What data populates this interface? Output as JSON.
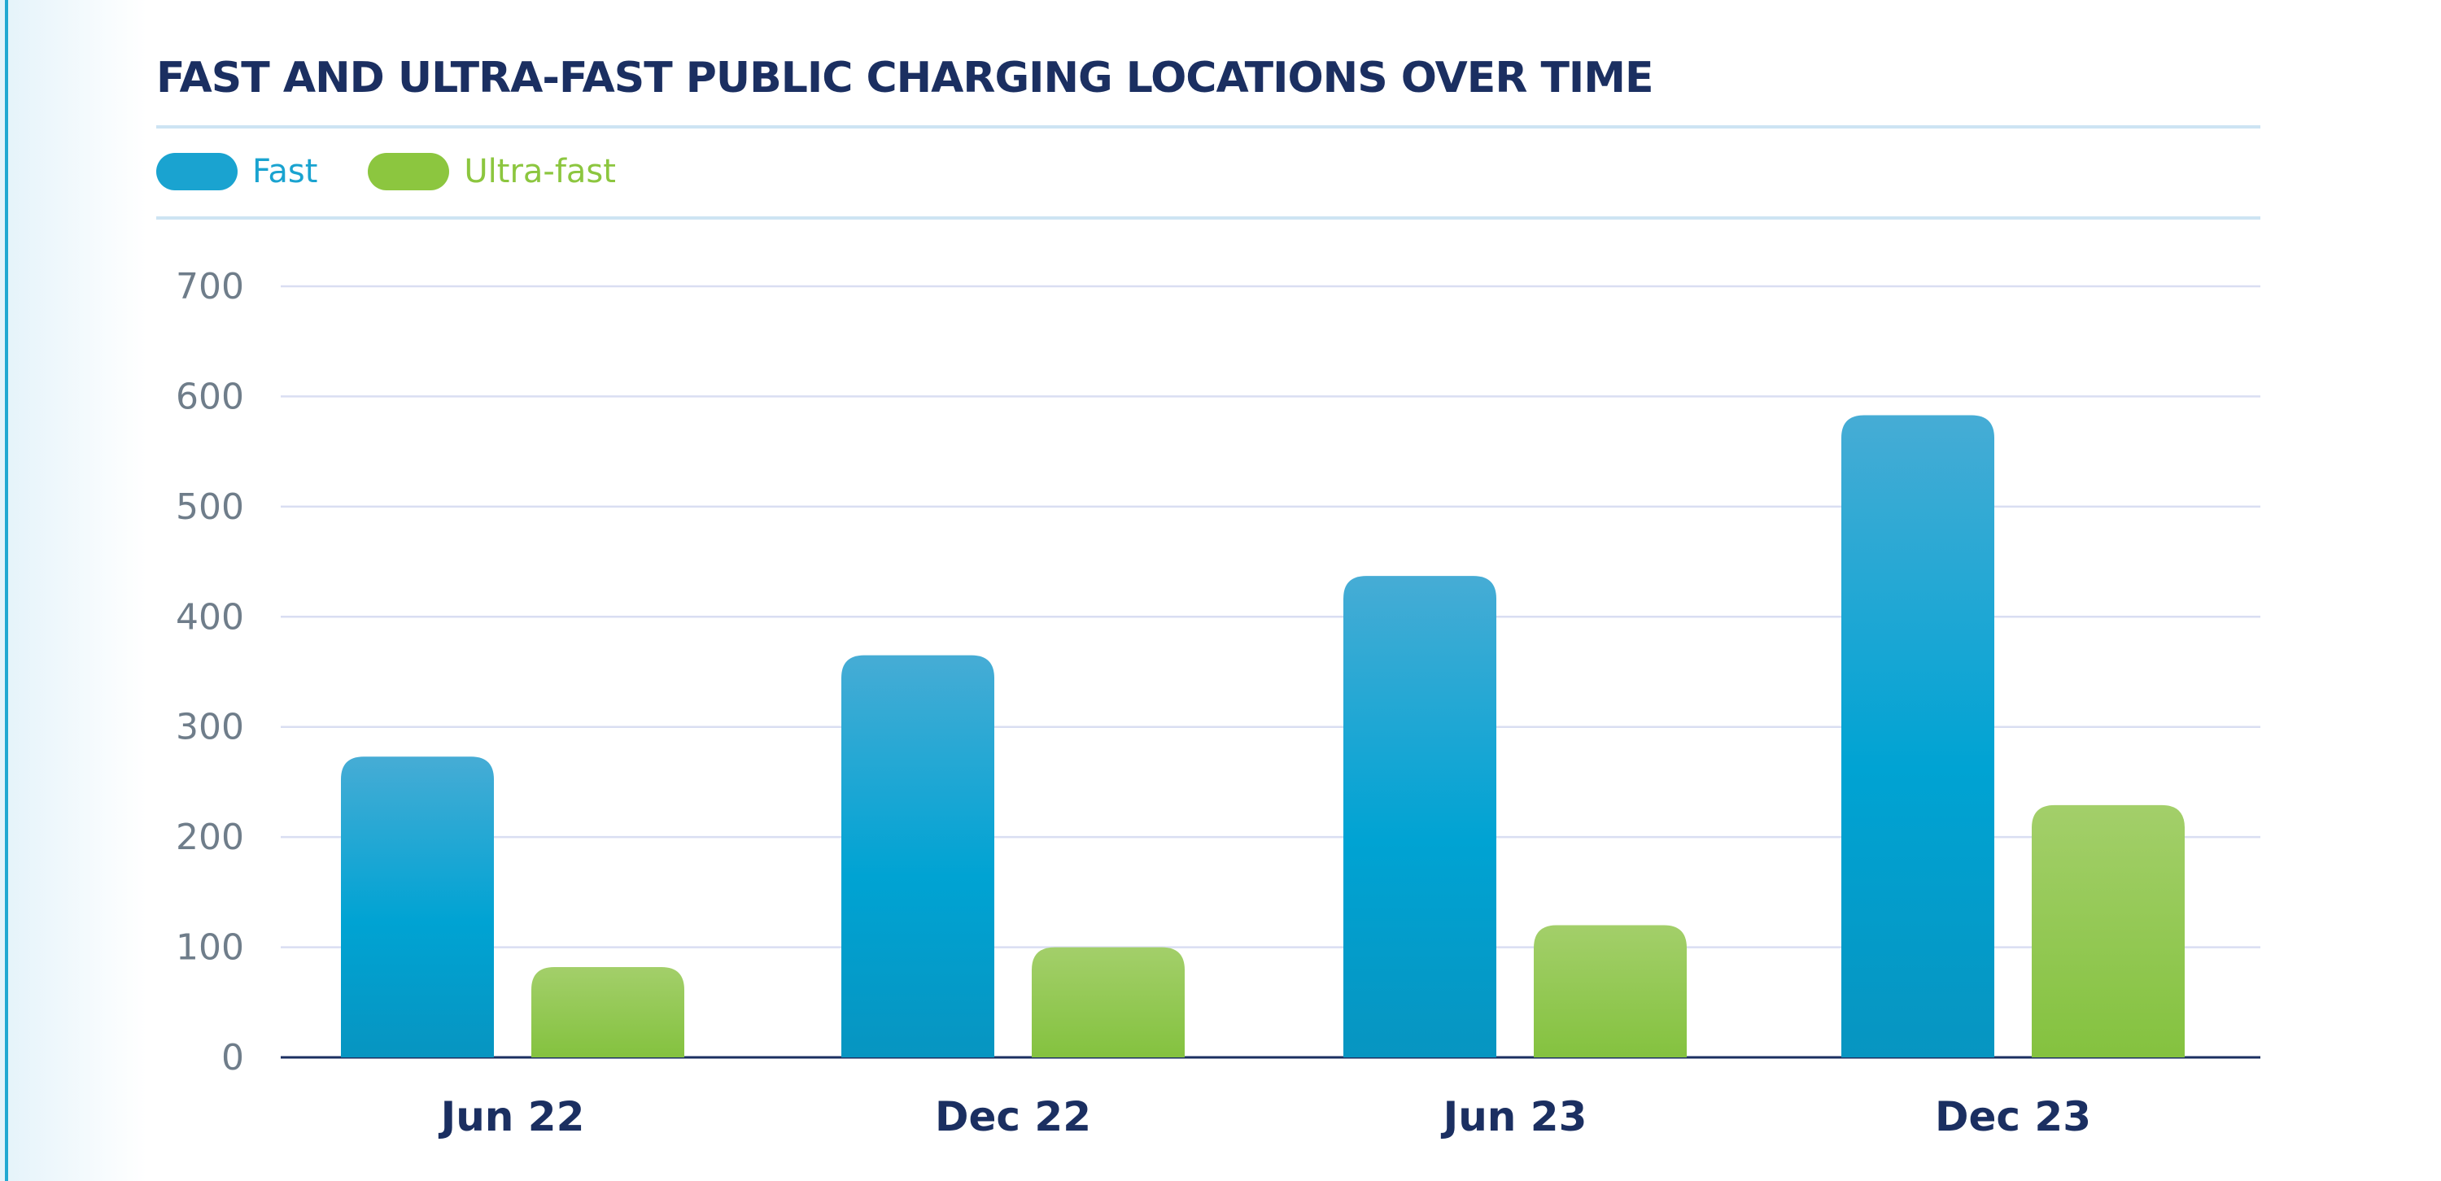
{
  "chart_data": {
    "type": "bar",
    "title": "FAST AND ULTRA-FAST PUBLIC CHARGING LOCATIONS OVER TIME",
    "categories": [
      "Jun 22",
      "Dec 22",
      "Jun 23",
      "Dec 23"
    ],
    "series": [
      {
        "name": "Fast",
        "values": [
          273,
          365,
          437,
          583
        ],
        "color": "#1aa3d0"
      },
      {
        "name": "Ultra-fast",
        "values": [
          82,
          100,
          120,
          229
        ],
        "color": "#8cc63f"
      }
    ],
    "ylim": [
      0,
      700
    ],
    "yticks": [
      0,
      100,
      200,
      300,
      400,
      500,
      600,
      700
    ],
    "xlabel": "",
    "ylabel": "",
    "grid": true,
    "legend_position": "top-left"
  }
}
